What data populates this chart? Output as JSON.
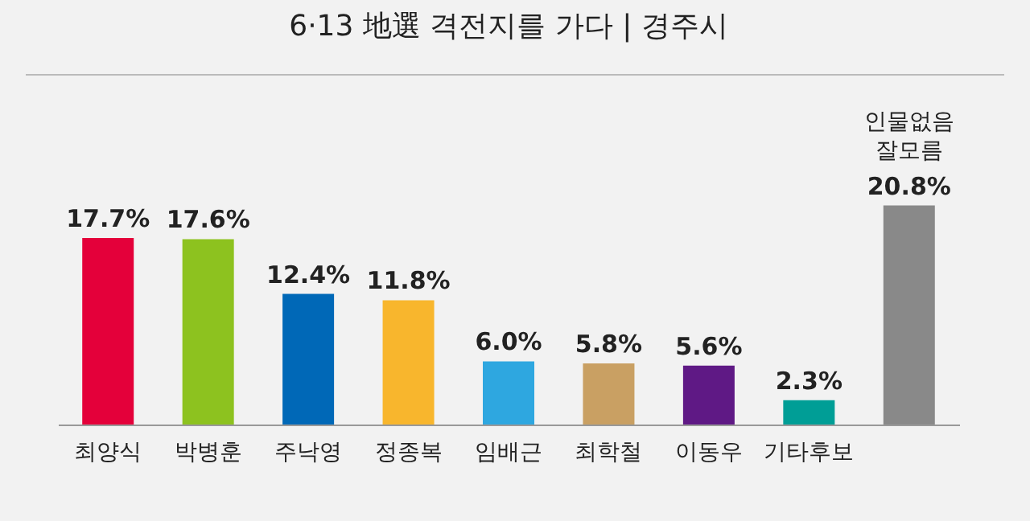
{
  "chart_data": {
    "type": "bar",
    "title": "6·13 地選 격전지를 가다  |  경주시",
    "categories": [
      "최양식",
      "박병훈",
      "주낙영",
      "정종복",
      "임배근",
      "최학철",
      "이동우",
      "기타후보",
      null
    ],
    "values": [
      17.7,
      17.6,
      12.4,
      11.8,
      6.0,
      5.8,
      5.6,
      2.3,
      20.8
    ],
    "colors": [
      "#e4003a",
      "#8dc21f",
      "#0068b7",
      "#f8b62d",
      "#2ea7e0",
      "#c9a063",
      "#5f1985",
      "#009e96",
      "#898989"
    ],
    "value_labels": [
      "17.7%",
      "17.6%",
      "12.4%",
      "11.8%",
      "6.0%",
      "5.8%",
      "5.6%",
      "2.3%",
      "20.8%"
    ],
    "annotations": [
      "인물없음\n잘모름"
    ],
    "grid": false
  }
}
